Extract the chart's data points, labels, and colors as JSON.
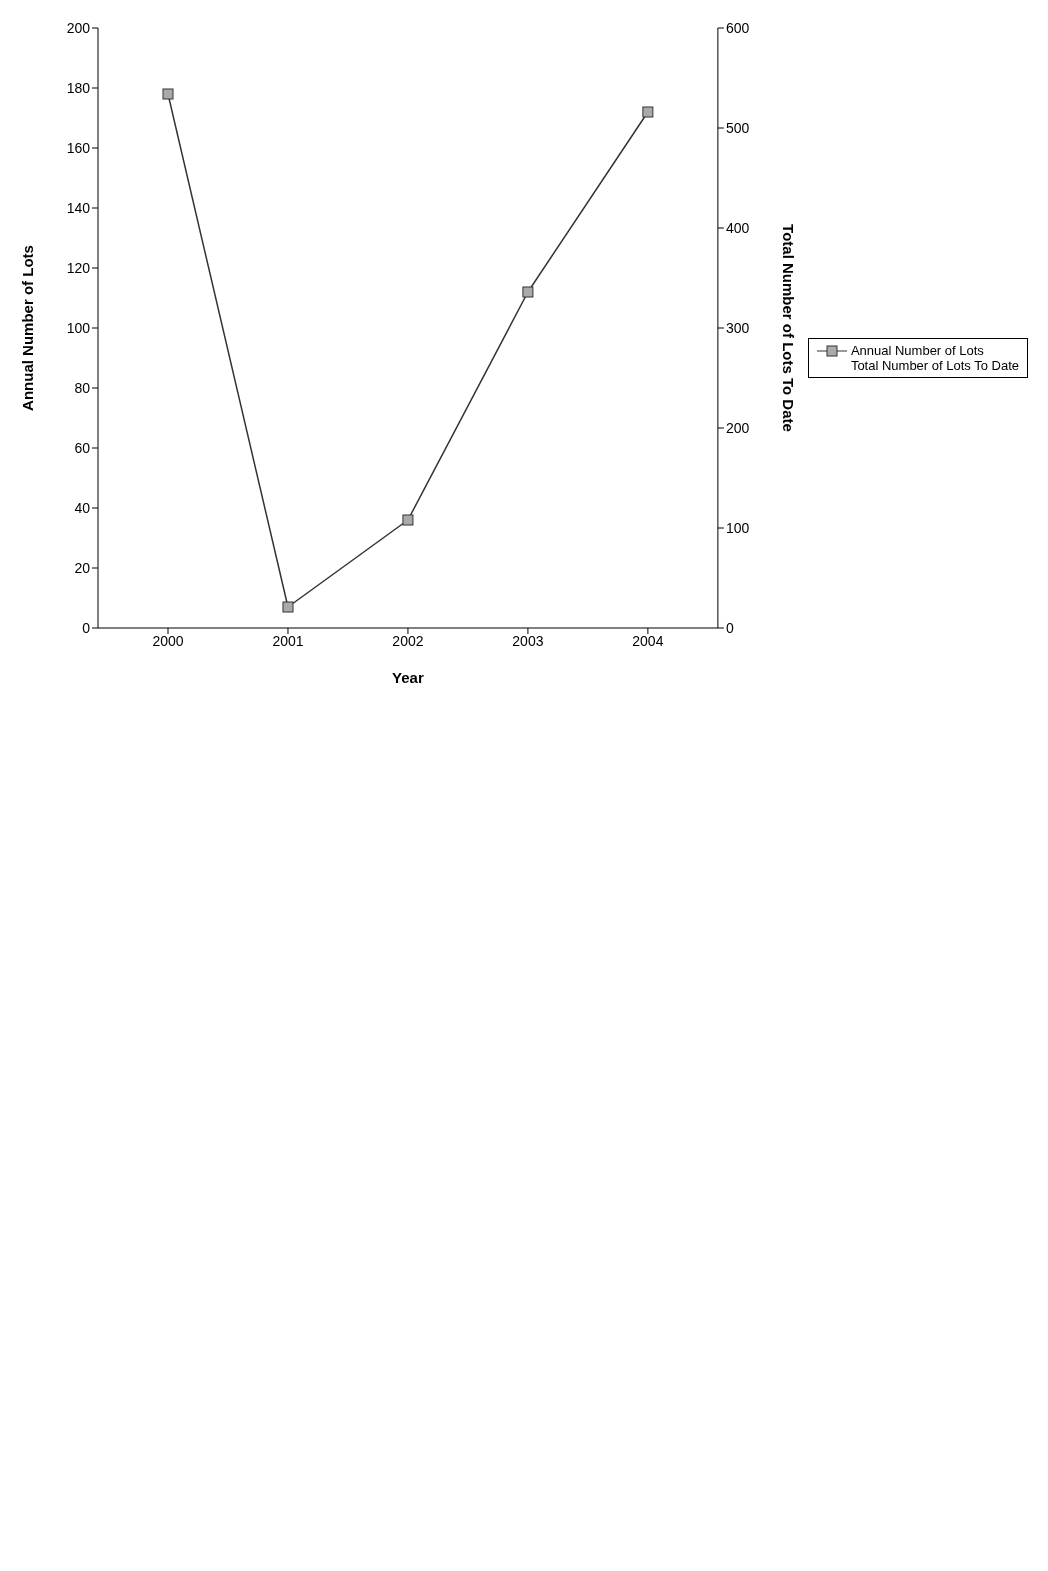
{
  "chart_data": {
    "type": "line",
    "xlabel": "Year",
    "ylabel": "Annual Number of Lots",
    "y2label": "Total Number of Lots To Date",
    "categories": [
      "2000",
      "2001",
      "2002",
      "2003",
      "2004"
    ],
    "series": [
      {
        "name": "Annual Number of Lots",
        "color": "#333333",
        "values": [
          178,
          7,
          36,
          112,
          172
        ]
      }
    ],
    "ylim": [
      0,
      200
    ],
    "yticks": [
      0,
      20,
      40,
      60,
      80,
      100,
      120,
      140,
      160,
      180,
      200
    ],
    "y2lim": [
      0,
      600
    ],
    "y2ticks": [
      0,
      100,
      200,
      300,
      400,
      500,
      600
    ],
    "marker": "square",
    "legend": "right",
    "annotations": [
      "Total Number of Lots To Date"
    ]
  }
}
